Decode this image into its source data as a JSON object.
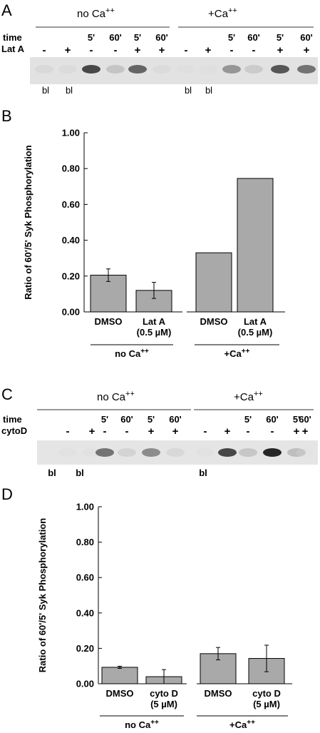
{
  "panel_a": {
    "letter": "A",
    "group_no_ca": "no Ca++",
    "group_plus_ca": "+Ca++",
    "row_time": "time",
    "row_drug": "Lat A",
    "time_labels": [
      "",
      "",
      "5'",
      "60'",
      "5'",
      "60'",
      "",
      "",
      "5'",
      "60'",
      "5'",
      "60'"
    ],
    "drug_labels": [
      "-",
      "+",
      "-",
      "-",
      "+",
      "+",
      "-",
      "+",
      "-",
      "-",
      "+",
      "+"
    ],
    "blank_labels": [
      "bl",
      "bl",
      "bl",
      "bl"
    ],
    "band_intensity": [
      0.12,
      0.1,
      0.85,
      0.3,
      0.75,
      0.1,
      0.05,
      0.05,
      0.55,
      0.25,
      0.8,
      0.7
    ]
  },
  "panel_b": {
    "letter": "B",
    "chart_data": {
      "type": "bar",
      "ylabel": "Ratio of 60'/5' Syk Phosphorylation",
      "ylim": [
        0,
        1
      ],
      "yticks": [
        "0.00",
        "0.20",
        "0.40",
        "0.60",
        "0.80",
        "1.00"
      ],
      "categories": [
        "DMSO",
        "Lat A",
        "DMSO",
        "Lat A"
      ],
      "category_sublabels": [
        "",
        "(0.5 µM)",
        "",
        "(0.5 µM)"
      ],
      "values": [
        0.205,
        0.12,
        0.33,
        0.745
      ],
      "errors": [
        0.035,
        0.045,
        0,
        0
      ],
      "groups": [
        "no Ca++",
        "+Ca++"
      ],
      "bar_color": "#a9a9a9"
    }
  },
  "panel_c": {
    "letter": "C",
    "group_no_ca": "no Ca++",
    "group_plus_ca": "+Ca++",
    "row_time": "time",
    "row_drug": "cytoD",
    "time_labels": [
      "",
      "",
      "5'",
      "60'",
      "5'",
      "60'",
      "",
      "",
      "5'",
      "60'",
      "5'",
      "60'"
    ],
    "drug_labels": [
      "-",
      "+",
      "-",
      "-",
      "+",
      "+",
      "-",
      "+",
      "-",
      "-",
      "+",
      "+"
    ],
    "blank_labels": [
      "bl",
      "bl",
      "bl"
    ],
    "band_intensity": [
      0.05,
      0.05,
      0.7,
      0.2,
      0.6,
      0.15,
      0.05,
      0.85,
      0.3,
      0.95,
      0.35,
      0.0
    ]
  },
  "panel_d": {
    "letter": "D",
    "chart_data": {
      "type": "bar",
      "ylabel": "Ratio of 60'/5' Syk Phosphorylation",
      "ylim": [
        0,
        1
      ],
      "yticks": [
        "0.00",
        "0.20",
        "0.40",
        "0.60",
        "0.80",
        "1.00"
      ],
      "categories": [
        "DMSO",
        "cyto D",
        "DMSO",
        "cyto D"
      ],
      "category_sublabels": [
        "",
        "(5 µM)",
        "",
        "(5 µM)"
      ],
      "values": [
        0.093,
        0.04,
        0.17,
        0.143
      ],
      "errors": [
        0.006,
        0.04,
        0.035,
        0.075
      ],
      "groups": [
        "no Ca++",
        "+Ca++"
      ],
      "bar_color": "#a9a9a9"
    }
  }
}
